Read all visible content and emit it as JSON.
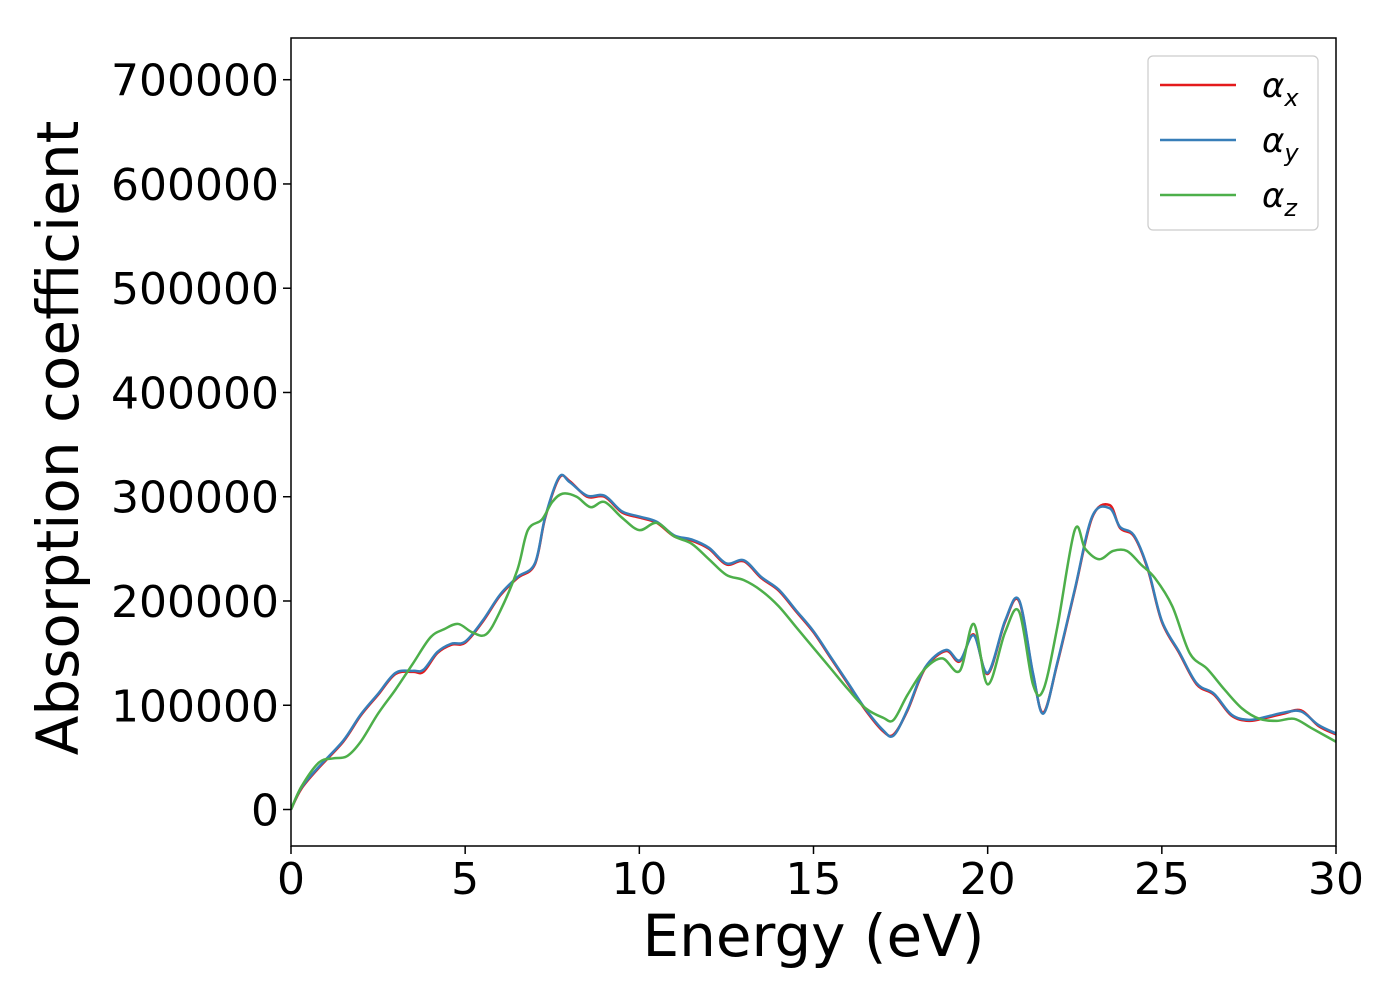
{
  "chart_data": {
    "type": "line",
    "title": "",
    "xlabel": "Energy (eV)",
    "ylabel": "Absorption coefficient",
    "xlim": [
      0,
      30
    ],
    "ylim": [
      -35000,
      740000
    ],
    "xticks": [
      0,
      5,
      10,
      15,
      20,
      25,
      30
    ],
    "yticks": [
      0,
      100000,
      200000,
      300000,
      400000,
      500000,
      600000,
      700000
    ],
    "grid": false,
    "legend_position": "top-right",
    "series": [
      {
        "name": "α_x",
        "base": "α",
        "sub": "x",
        "color": "#e41a1c",
        "x": [
          0,
          0.3,
          0.8,
          1.5,
          2.0,
          2.5,
          3.0,
          3.5,
          3.8,
          4.2,
          4.6,
          5.0,
          5.5,
          6.0,
          6.5,
          7.0,
          7.3,
          7.7,
          8.0,
          8.5,
          9.0,
          9.5,
          10.0,
          10.5,
          11.0,
          11.5,
          12.0,
          12.5,
          13.0,
          13.5,
          14.0,
          14.5,
          15.0,
          15.5,
          16.0,
          16.5,
          17.0,
          17.3,
          17.7,
          18.2,
          18.8,
          19.2,
          19.6,
          20.0,
          20.5,
          20.9,
          21.3,
          21.6,
          22.0,
          22.5,
          23.0,
          23.5,
          23.8,
          24.2,
          24.6,
          25.0,
          25.5,
          26.0,
          26.5,
          27.0,
          27.5,
          28.0,
          28.5,
          29.0,
          29.5,
          30.0
        ],
        "y": [
          0,
          20000,
          40000,
          65000,
          90000,
          110000,
          130000,
          132000,
          132000,
          150000,
          158000,
          160000,
          180000,
          205000,
          222000,
          235000,
          280000,
          318000,
          315000,
          300000,
          300000,
          285000,
          280000,
          275000,
          262000,
          258000,
          250000,
          235000,
          238000,
          222000,
          210000,
          190000,
          170000,
          145000,
          120000,
          95000,
          75000,
          72000,
          95000,
          135000,
          152000,
          142000,
          168000,
          130000,
          180000,
          200000,
          130000,
          93000,
          140000,
          210000,
          280000,
          292000,
          270000,
          262000,
          230000,
          180000,
          150000,
          120000,
          110000,
          90000,
          85000,
          88000,
          92000,
          95000,
          80000,
          72000
        ]
      },
      {
        "name": "α_y",
        "base": "α",
        "sub": "y",
        "color": "#377eb8",
        "x": [
          0,
          0.3,
          0.8,
          1.5,
          2.0,
          2.5,
          3.0,
          3.5,
          3.8,
          4.2,
          4.6,
          5.0,
          5.5,
          6.0,
          6.5,
          7.0,
          7.3,
          7.7,
          8.0,
          8.5,
          9.0,
          9.5,
          10.0,
          10.5,
          11.0,
          11.5,
          12.0,
          12.5,
          13.0,
          13.5,
          14.0,
          14.5,
          15.0,
          15.5,
          16.0,
          16.5,
          17.0,
          17.3,
          17.7,
          18.2,
          18.8,
          19.2,
          19.6,
          20.0,
          20.5,
          20.9,
          21.3,
          21.6,
          22.0,
          22.5,
          23.0,
          23.5,
          23.8,
          24.2,
          24.6,
          25.0,
          25.5,
          26.0,
          26.5,
          27.0,
          27.5,
          28.0,
          28.5,
          29.0,
          29.5,
          30.0
        ],
        "y": [
          0,
          21000,
          41000,
          66000,
          91000,
          111000,
          131000,
          133000,
          134000,
          151000,
          159000,
          161000,
          181000,
          206000,
          223000,
          236000,
          281000,
          319000,
          314000,
          301000,
          301000,
          286000,
          281000,
          276000,
          263000,
          259000,
          251000,
          236000,
          239000,
          223000,
          211000,
          191000,
          171000,
          146000,
          121000,
          96000,
          76000,
          71000,
          96000,
          136000,
          153000,
          143000,
          167000,
          131000,
          181000,
          201000,
          131000,
          92000,
          141000,
          211000,
          281000,
          289000,
          271000,
          263000,
          231000,
          181000,
          151000,
          121000,
          111000,
          91000,
          86000,
          89000,
          93000,
          94000,
          81000,
          73000
        ]
      },
      {
        "name": "α_z",
        "base": "α",
        "sub": "z",
        "color": "#4daf4a",
        "x": [
          0,
          0.3,
          0.8,
          1.2,
          1.6,
          2.0,
          2.5,
          3.0,
          3.5,
          4.0,
          4.4,
          4.8,
          5.2,
          5.6,
          6.0,
          6.5,
          6.8,
          7.2,
          7.5,
          7.8,
          8.2,
          8.6,
          9.0,
          9.5,
          10.0,
          10.5,
          11.0,
          11.5,
          12.0,
          12.5,
          13.0,
          13.5,
          14.0,
          14.5,
          15.0,
          15.5,
          16.0,
          16.5,
          17.0,
          17.3,
          17.7,
          18.2,
          18.7,
          19.2,
          19.6,
          20.0,
          20.5,
          20.9,
          21.3,
          21.6,
          22.0,
          22.5,
          22.8,
          23.2,
          23.6,
          24.0,
          24.4,
          24.8,
          25.3,
          25.8,
          26.3,
          26.8,
          27.3,
          27.8,
          28.3,
          28.8,
          29.3,
          30.0
        ],
        "y": [
          0,
          22000,
          45000,
          49000,
          51000,
          65000,
          92000,
          115000,
          140000,
          165000,
          173000,
          178000,
          170000,
          168000,
          190000,
          230000,
          268000,
          278000,
          295000,
          303000,
          300000,
          290000,
          295000,
          280000,
          268000,
          275000,
          262000,
          255000,
          240000,
          225000,
          220000,
          210000,
          195000,
          175000,
          155000,
          135000,
          115000,
          97000,
          88000,
          86000,
          110000,
          135000,
          145000,
          133000,
          178000,
          120000,
          170000,
          190000,
          120000,
          115000,
          175000,
          268000,
          250000,
          240000,
          248000,
          248000,
          235000,
          222000,
          195000,
          150000,
          135000,
          115000,
          97000,
          87000,
          85000,
          87000,
          78000,
          65000
        ]
      }
    ]
  }
}
